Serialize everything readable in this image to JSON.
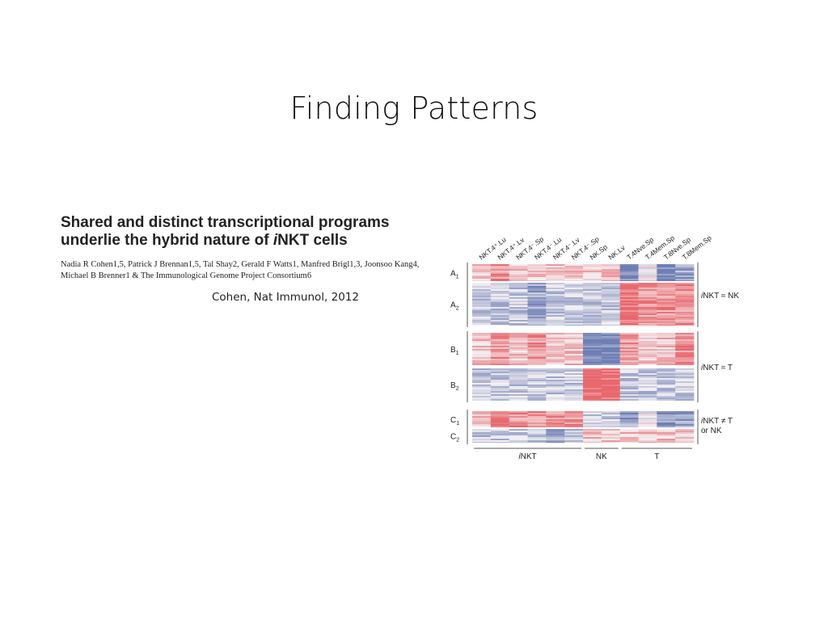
{
  "slide": {
    "title": "Finding Patterns",
    "citation": "Cohen, Nat Immunol, 2012"
  },
  "paper": {
    "title_line1": "Shared and distinct transcriptional programs",
    "title_line2_pre": "underlie the hybrid nature of ",
    "title_line2_i": "i",
    "title_line2_post": "NKT cells",
    "authors_line1": "Nadia R Cohen1,5, Patrick J Brennan1,5, Tal Shay2, Gerald F Watts1, Manfred Brigl1,3, Joonsoo Kang4,",
    "authors_line2": "Michael B Brenner1 & The Immunological Genome Project Consortium6"
  },
  "chart_data": {
    "type": "heatmap",
    "columns": [
      "NKT.4⁺.Lu",
      "NKT.4⁺.Lv",
      "NKT.4⁻.Sp",
      "NKT.4⁻.Lu",
      "NKT.4⁻.Lv",
      "NKT.4⁻.Sp",
      "NK.Sp",
      "NK.Lv",
      "T.4Nve.Sp",
      "T.4Mem.Sp",
      "T.8Nve.Sp",
      "T.8Mem.Sp"
    ],
    "column_groups": [
      {
        "label": "iNKT",
        "columns": [
          0,
          5
        ]
      },
      {
        "label": "NK",
        "columns": [
          6,
          7
        ]
      },
      {
        "label": "T",
        "columns": [
          8,
          11
        ]
      }
    ],
    "row_blocks": [
      {
        "label": "A",
        "sub": "1",
        "pattern": [
          1,
          2,
          1,
          1,
          1,
          1,
          1,
          1,
          -3,
          0,
          -3,
          -2
        ]
      },
      {
        "label": "A",
        "sub": "2",
        "pattern": [
          -1,
          -1,
          -1,
          -2,
          -1,
          -1,
          -1,
          -1,
          3,
          2,
          2,
          2
        ]
      },
      {
        "label": "B",
        "sub": "1",
        "pattern": [
          1,
          2,
          1,
          2,
          1,
          1,
          -3,
          -3,
          2,
          1,
          1,
          2
        ]
      },
      {
        "label": "B",
        "sub": "2",
        "pattern": [
          -1,
          -1,
          -1,
          -1,
          -1,
          -1,
          3,
          3,
          -1,
          -1,
          -1,
          -1
        ]
      },
      {
        "label": "C",
        "sub": "1",
        "pattern": [
          1,
          3,
          2,
          2,
          2,
          2,
          -1,
          -1,
          -2,
          0,
          -2,
          -2
        ]
      },
      {
        "label": "C",
        "sub": "2",
        "pattern": [
          -1,
          -1,
          -1,
          -1,
          -2,
          -1,
          1,
          1,
          1,
          1,
          1,
          1
        ]
      }
    ],
    "bracket_labels": [
      {
        "i": "i",
        "text": "NKT ≈ NK"
      },
      {
        "i": "i",
        "text": "NKT ≈ T"
      },
      {
        "i": "i",
        "text": "NKT ≠ T",
        "line2": "or NK"
      }
    ],
    "colors": {
      "high": "#e8686d",
      "low": "#6e7fb4",
      "mid": "#f4f0f3"
    }
  }
}
